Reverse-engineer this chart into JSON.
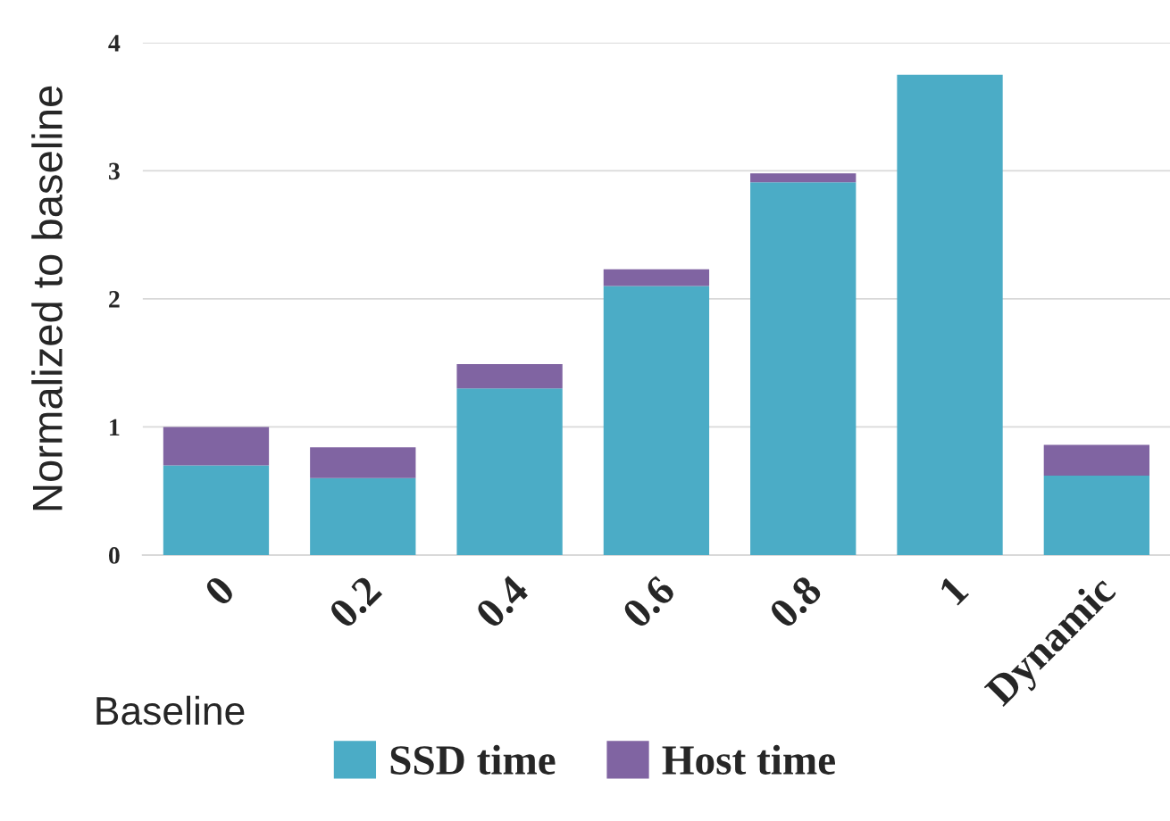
{
  "chart_data": {
    "type": "bar",
    "stacked": true,
    "ylabel": "Normalized to baseline",
    "categories": [
      "0",
      "0.2",
      "0.4",
      "0.6",
      "0.8",
      "1",
      "Dynamic"
    ],
    "series": [
      {
        "name": "SSD time",
        "color": "#4bacc6",
        "values": [
          0.7,
          0.6,
          1.3,
          2.1,
          2.91,
          3.75,
          0.62
        ]
      },
      {
        "name": "Host time",
        "color": "#8064a2",
        "values": [
          0.3,
          0.24,
          0.19,
          0.13,
          0.07,
          null,
          0.24
        ]
      }
    ],
    "ylim": [
      0,
      4
    ],
    "yticks": [
      0,
      1,
      2,
      3,
      4
    ],
    "grid": "y",
    "legend": "bottom",
    "annotations": [
      "Baseline"
    ]
  }
}
